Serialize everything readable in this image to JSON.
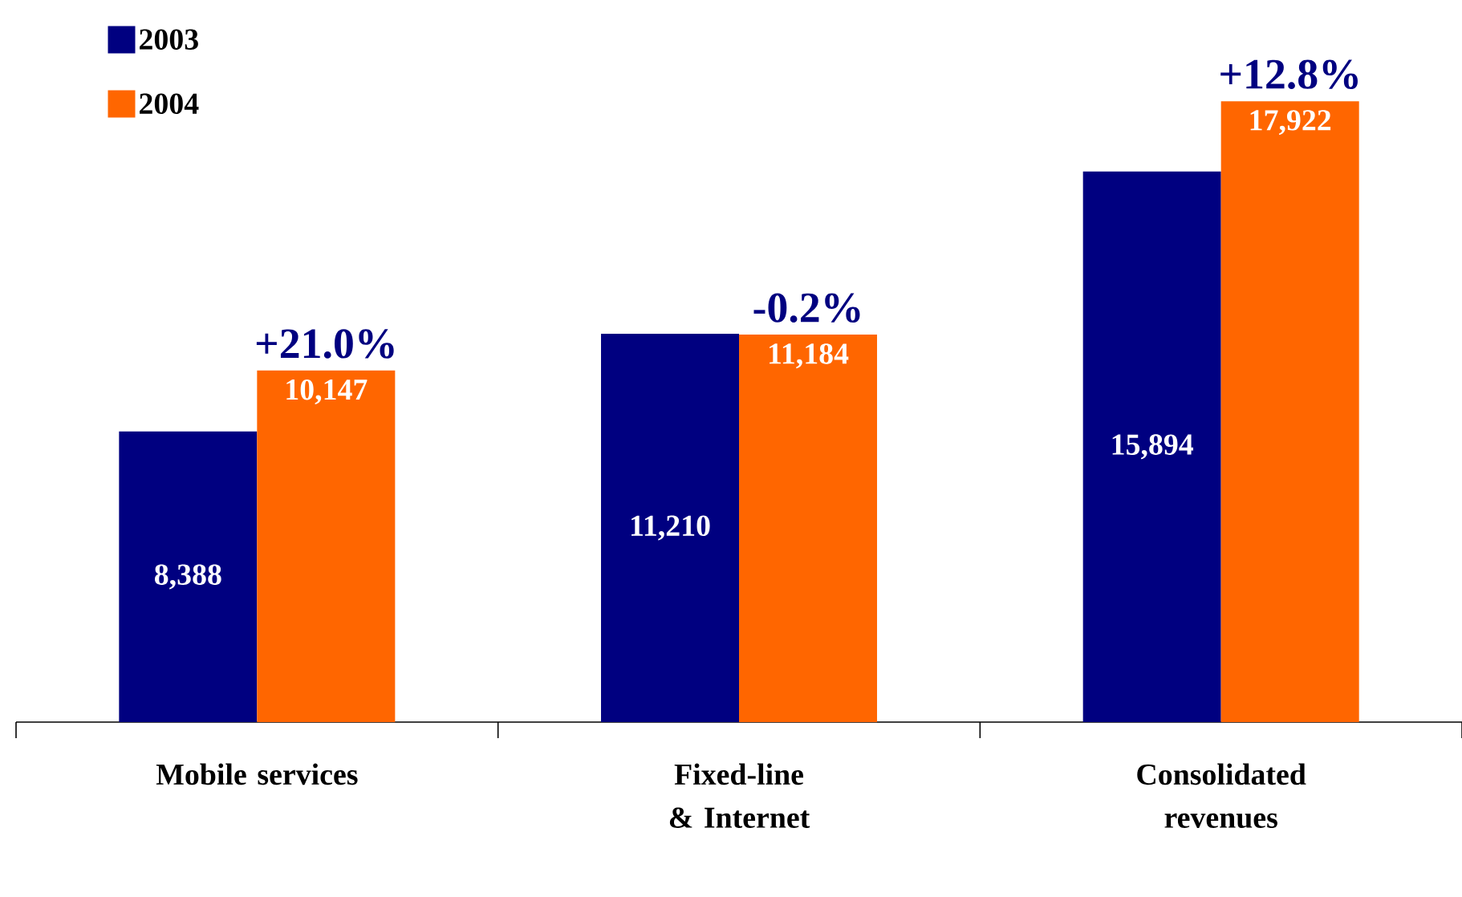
{
  "chart_data": {
    "type": "bar",
    "categories": [
      "Mobile services",
      "Fixed-line & Internet",
      "Consolidated revenues"
    ],
    "series": [
      {
        "name": "2003",
        "color": "#000080",
        "values": [
          8388,
          11210,
          15894
        ],
        "value_labels": [
          "8,388",
          "11,210",
          "15,894"
        ]
      },
      {
        "name": "2004",
        "color": "#ff6600",
        "values": [
          10147,
          11184,
          17922
        ],
        "value_labels": [
          "10,147",
          "11,184",
          "17,922"
        ]
      }
    ],
    "tick_labels": "x",
    "legend": "top left",
    "annotations": [
      "+21.0%",
      "-0.2%",
      "+12.8%"
    ]
  }
}
